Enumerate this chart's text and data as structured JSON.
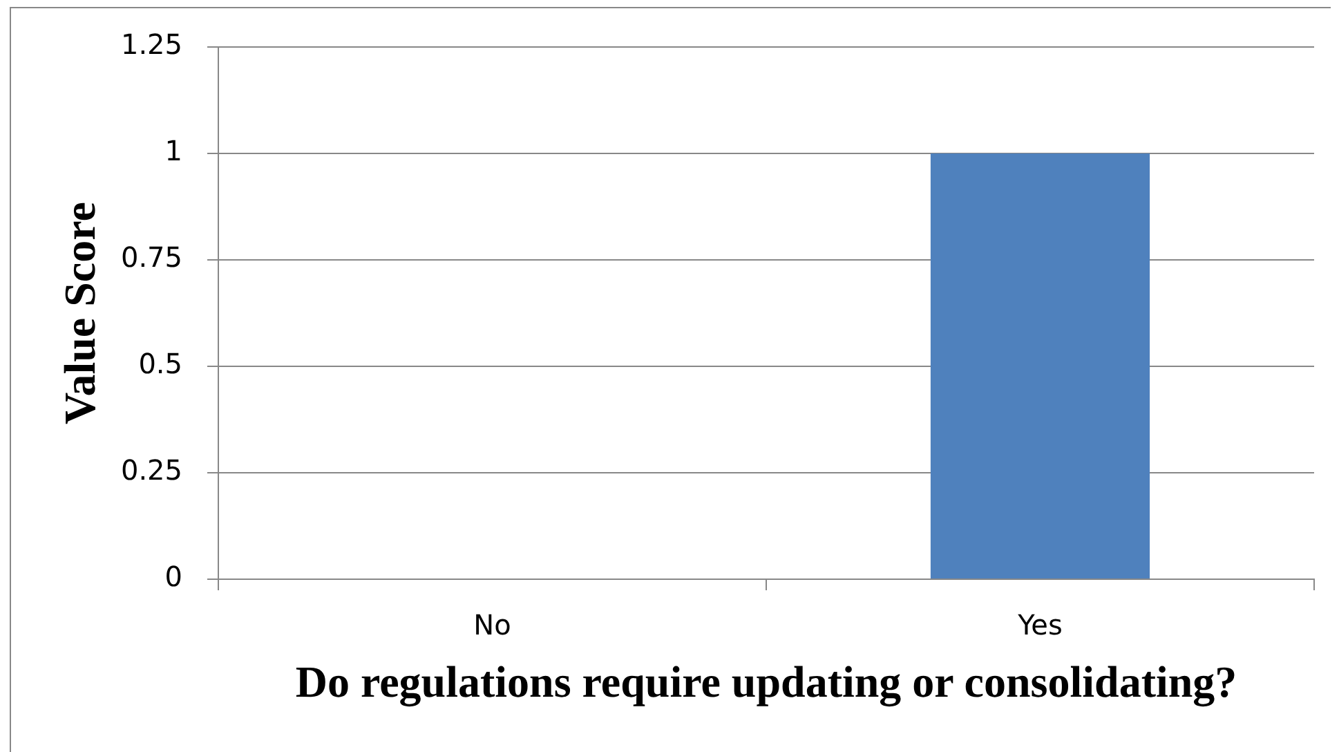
{
  "chart_data": {
    "type": "bar",
    "categories": [
      "No",
      "Yes"
    ],
    "values": [
      0,
      1
    ],
    "color": "#4f81bd",
    "xlabel": "Do regulations require updating or consolidating?",
    "ylabel": "Value Score",
    "ylim": [
      0,
      1.25
    ],
    "yticks": [
      0,
      0.25,
      0.5,
      0.75,
      1,
      1.25
    ],
    "grid": "y"
  }
}
